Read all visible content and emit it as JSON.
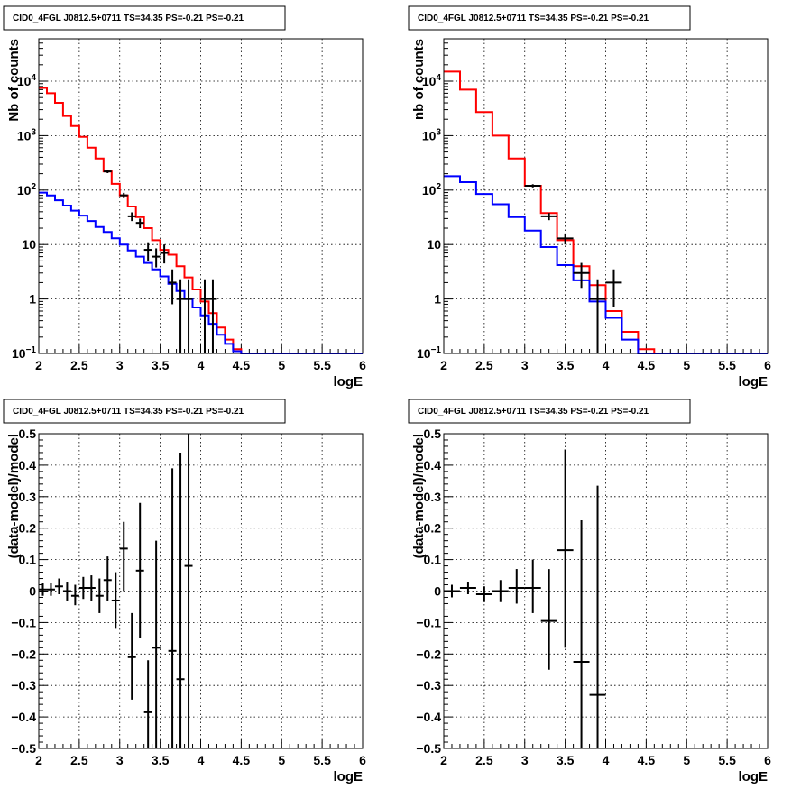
{
  "chart_data": [
    {
      "type": "line",
      "title": "CID0_4FGL J0812.5+0711 TS=34.35 PS=-0.21 PS=-0.21",
      "xlabel": "logE",
      "ylabel": "Nb of counts",
      "xlim": [
        2,
        6
      ],
      "ylim": [
        0.1,
        60000
      ],
      "yscale": "log",
      "grid": true,
      "x_ticks": [
        "2",
        "2.5",
        "3",
        "3.5",
        "4",
        "4.5",
        "5",
        "5.5",
        "6"
      ],
      "y_ticks": [
        {
          "value": 0.1,
          "label": "10^-1"
        },
        {
          "value": 1,
          "label": "1"
        },
        {
          "value": 10,
          "label": "10"
        },
        {
          "value": 100,
          "label": "10^2"
        },
        {
          "value": 1000,
          "label": "10^3"
        },
        {
          "value": 10000,
          "label": "10^4"
        }
      ],
      "series": [
        {
          "kind": "step",
          "color": "#ff0000",
          "bin_edges": [
            2.0,
            2.1,
            2.2,
            2.3,
            2.4,
            2.5,
            2.6,
            2.7,
            2.8,
            2.9,
            3.0,
            3.1,
            3.2,
            3.3,
            3.4,
            3.5,
            3.6,
            3.7,
            3.8,
            3.9,
            4.0,
            4.1,
            4.2,
            4.3,
            4.4,
            4.5,
            4.6,
            4.7,
            4.8,
            4.9,
            5.0,
            5.1,
            5.2,
            5.3,
            5.4,
            5.5,
            5.6,
            5.7,
            5.8,
            5.9,
            6.0
          ],
          "values": [
            7500,
            6000,
            4000,
            2300,
            1500,
            950,
            600,
            380,
            220,
            130,
            80,
            50,
            32,
            20,
            12,
            8,
            6.5,
            4,
            2.5,
            1.5,
            0.9,
            0.55,
            0.3,
            0.18,
            0.12,
            0.1,
            0.1,
            0.1,
            0.1,
            0.1,
            0.1,
            0.1,
            0.1,
            0.1,
            0.1,
            0.1,
            0.1,
            0.1,
            0.1,
            0.1
          ]
        },
        {
          "kind": "step",
          "color": "#0000ff",
          "bin_edges": [
            2.0,
            2.1,
            2.2,
            2.3,
            2.4,
            2.5,
            2.6,
            2.7,
            2.8,
            2.9,
            3.0,
            3.1,
            3.2,
            3.3,
            3.4,
            3.5,
            3.6,
            3.7,
            3.8,
            3.9,
            4.0,
            4.1,
            4.2,
            4.3,
            4.4,
            4.5,
            4.6,
            4.7,
            4.8,
            4.9,
            5.0,
            5.1,
            5.2,
            5.3,
            5.4,
            5.5,
            5.6,
            5.7,
            5.8,
            5.9,
            6.0
          ],
          "values": [
            90,
            80,
            65,
            52,
            42,
            34,
            27,
            21,
            17,
            13,
            10,
            7.8,
            6,
            4.6,
            3.5,
            2.6,
            1.9,
            1.4,
            1.0,
            0.7,
            0.5,
            0.35,
            0.22,
            0.15,
            0.11,
            0.1,
            0.1,
            0.1,
            0.1,
            0.1,
            0.1,
            0.1,
            0.1,
            0.1,
            0.1,
            0.1,
            0.1,
            0.1,
            0.1,
            0.1
          ]
        },
        {
          "kind": "points",
          "color": "#000000",
          "points": [
            {
              "x": 2.85,
              "y": 220,
              "xerr": 0.05,
              "ylo": 205,
              "yhi": 235
            },
            {
              "x": 3.05,
              "y": 80,
              "xerr": 0.05,
              "ylo": 71,
              "yhi": 89
            },
            {
              "x": 3.15,
              "y": 33,
              "xerr": 0.05,
              "ylo": 27,
              "yhi": 39
            },
            {
              "x": 3.25,
              "y": 25,
              "xerr": 0.05,
              "ylo": 20,
              "yhi": 30
            },
            {
              "x": 3.35,
              "y": 8,
              "xerr": 0.05,
              "ylo": 5,
              "yhi": 11
            },
            {
              "x": 3.45,
              "y": 6,
              "xerr": 0.05,
              "ylo": 3.8,
              "yhi": 8.5
            },
            {
              "x": 3.55,
              "y": 7,
              "xerr": 0.05,
              "ylo": 4.5,
              "yhi": 10
            },
            {
              "x": 3.65,
              "y": 2,
              "xerr": 0.05,
              "ylo": 0.8,
              "yhi": 3.5
            },
            {
              "x": 3.75,
              "y": 1,
              "xerr": 0.05,
              "ylo": 0.1,
              "yhi": 2.3
            },
            {
              "x": 3.85,
              "y": 1,
              "xerr": 0.05,
              "ylo": 0.1,
              "yhi": 2.3
            },
            {
              "x": 4.05,
              "y": 1,
              "xerr": 0.05,
              "ylo": 0.1,
              "yhi": 2.3
            },
            {
              "x": 4.15,
              "y": 1,
              "xerr": 0.05,
              "ylo": 0.1,
              "yhi": 2.3
            }
          ]
        }
      ]
    },
    {
      "type": "line",
      "title": "CID0_4FGL J0812.5+0711 TS=34.35 PS=-0.21 PS=-0.21",
      "xlabel": "logE",
      "ylabel": "nb of counts",
      "xlim": [
        2,
        6
      ],
      "ylim": [
        0.1,
        60000
      ],
      "yscale": "log",
      "grid": true,
      "x_ticks": [
        "2",
        "2.5",
        "3",
        "3.5",
        "4",
        "4.5",
        "5",
        "5.5",
        "6"
      ],
      "y_ticks": [
        {
          "value": 0.1,
          "label": "10^-1"
        },
        {
          "value": 1,
          "label": "1"
        },
        {
          "value": 10,
          "label": "10"
        },
        {
          "value": 100,
          "label": "10^2"
        },
        {
          "value": 1000,
          "label": "10^3"
        },
        {
          "value": 10000,
          "label": "10^4"
        }
      ],
      "series": [
        {
          "kind": "step",
          "color": "#ff0000",
          "bin_edges": [
            2.0,
            2.2,
            2.4,
            2.6,
            2.8,
            3.0,
            3.2,
            3.4,
            3.6,
            3.8,
            4.0,
            4.2,
            4.4,
            4.6,
            4.8,
            5.0,
            5.2,
            5.4,
            5.6,
            5.8,
            6.0
          ],
          "values": [
            15000,
            7000,
            2700,
            1000,
            380,
            120,
            38,
            12,
            4,
            1.8,
            0.6,
            0.25,
            0.12,
            0.1,
            0.1,
            0.1,
            0.1,
            0.1,
            0.1,
            0.1
          ]
        },
        {
          "kind": "step",
          "color": "#0000ff",
          "bin_edges": [
            2.0,
            2.2,
            2.4,
            2.6,
            2.8,
            3.0,
            3.2,
            3.4,
            3.6,
            3.8,
            4.0,
            4.2,
            4.4,
            4.6,
            4.8,
            5.0,
            5.2,
            5.4,
            5.6,
            5.8,
            6.0
          ],
          "values": [
            180,
            140,
            85,
            55,
            32,
            18,
            9,
            4.2,
            2.2,
            0.9,
            0.45,
            0.18,
            0.1,
            0.1,
            0.1,
            0.1,
            0.1,
            0.1,
            0.1,
            0.1
          ]
        },
        {
          "kind": "points",
          "color": "#000000",
          "points": [
            {
              "x": 3.1,
              "y": 120,
              "xerr": 0.1,
              "ylo": 112,
              "yhi": 128
            },
            {
              "x": 3.3,
              "y": 33,
              "xerr": 0.1,
              "ylo": 28,
              "yhi": 38
            },
            {
              "x": 3.5,
              "y": 13,
              "xerr": 0.1,
              "ylo": 10,
              "yhi": 16
            },
            {
              "x": 3.7,
              "y": 3,
              "xerr": 0.1,
              "ylo": 1.6,
              "yhi": 4.6
            },
            {
              "x": 3.9,
              "y": 1,
              "xerr": 0.1,
              "ylo": 0.1,
              "yhi": 2.3
            },
            {
              "x": 4.1,
              "y": 2,
              "xerr": 0.1,
              "ylo": 0.7,
              "yhi": 3.5
            }
          ]
        }
      ]
    },
    {
      "type": "scatter",
      "title": "CID0_4FGL J0812.5+0711 TS=34.35 PS=-0.21 PS=-0.21",
      "xlabel": "logE",
      "ylabel": "(data-model)/model",
      "xlim": [
        2,
        6
      ],
      "ylim": [
        -0.5,
        0.5
      ],
      "yscale": "linear",
      "grid": true,
      "x_ticks": [
        "2",
        "2.5",
        "3",
        "3.5",
        "4",
        "4.5",
        "5",
        "5.5",
        "6"
      ],
      "y_ticks": [
        {
          "value": -0.5,
          "label": "−0.5"
        },
        {
          "value": -0.4,
          "label": "−0.4"
        },
        {
          "value": -0.3,
          "label": "−0.3"
        },
        {
          "value": -0.2,
          "label": "−0.2"
        },
        {
          "value": -0.1,
          "label": "−0.1"
        },
        {
          "value": 0,
          "label": "0"
        },
        {
          "value": 0.1,
          "label": "0.1"
        },
        {
          "value": 0.2,
          "label": "0.2"
        },
        {
          "value": 0.3,
          "label": "0.3"
        },
        {
          "value": 0.4,
          "label": "0.4"
        },
        {
          "value": 0.5,
          "label": "0.5"
        }
      ],
      "series": [
        {
          "kind": "points",
          "color": "#000000",
          "points": [
            {
              "x": 2.05,
              "y": 0.005,
              "xerr": 0.05,
              "ylo": -0.015,
              "yhi": 0.025
            },
            {
              "x": 2.15,
              "y": 0.005,
              "xerr": 0.05,
              "ylo": -0.015,
              "yhi": 0.025
            },
            {
              "x": 2.25,
              "y": 0.015,
              "xerr": 0.05,
              "ylo": -0.01,
              "yhi": 0.04
            },
            {
              "x": 2.35,
              "y": 0.0,
              "xerr": 0.05,
              "ylo": -0.03,
              "yhi": 0.03
            },
            {
              "x": 2.45,
              "y": -0.015,
              "xerr": 0.05,
              "ylo": -0.045,
              "yhi": 0.02
            },
            {
              "x": 2.55,
              "y": 0.01,
              "xerr": 0.05,
              "ylo": -0.025,
              "yhi": 0.045
            },
            {
              "x": 2.65,
              "y": 0.01,
              "xerr": 0.05,
              "ylo": -0.03,
              "yhi": 0.05
            },
            {
              "x": 2.75,
              "y": -0.015,
              "xerr": 0.05,
              "ylo": -0.07,
              "yhi": 0.04
            },
            {
              "x": 2.85,
              "y": 0.035,
              "xerr": 0.05,
              "ylo": -0.03,
              "yhi": 0.11
            },
            {
              "x": 2.95,
              "y": -0.03,
              "xerr": 0.05,
              "ylo": -0.12,
              "yhi": 0.06
            },
            {
              "x": 3.05,
              "y": 0.135,
              "xerr": 0.05,
              "ylo": 0.0,
              "yhi": 0.22
            },
            {
              "x": 3.15,
              "y": -0.21,
              "xerr": 0.05,
              "ylo": -0.345,
              "yhi": -0.07
            },
            {
              "x": 3.25,
              "y": 0.065,
              "xerr": 0.05,
              "ylo": -0.15,
              "yhi": 0.28
            },
            {
              "x": 3.35,
              "y": -0.385,
              "xerr": 0.05,
              "ylo": -0.5,
              "yhi": -0.22
            },
            {
              "x": 3.45,
              "y": -0.18,
              "xerr": 0.05,
              "ylo": -0.5,
              "yhi": 0.16
            },
            {
              "x": 3.65,
              "y": -0.19,
              "xerr": 0.05,
              "ylo": -0.5,
              "yhi": 0.39
            },
            {
              "x": 3.75,
              "y": -0.28,
              "xerr": 0.05,
              "ylo": -0.5,
              "yhi": 0.44
            },
            {
              "x": 3.85,
              "y": 0.08,
              "xerr": 0.05,
              "ylo": -0.5,
              "yhi": 0.5
            }
          ]
        }
      ]
    },
    {
      "type": "scatter",
      "title": "CID0_4FGL J0812.5+0711 TS=34.35 PS=-0.21 PS=-0.21",
      "xlabel": "logE",
      "ylabel": "(data-model)/model",
      "xlim": [
        2,
        6
      ],
      "ylim": [
        -0.5,
        0.5
      ],
      "yscale": "linear",
      "grid": true,
      "x_ticks": [
        "2",
        "2.5",
        "3",
        "3.5",
        "4",
        "4.5",
        "5",
        "5.5",
        "6"
      ],
      "y_ticks": [
        {
          "value": -0.5,
          "label": "−0.5"
        },
        {
          "value": -0.4,
          "label": "−0.4"
        },
        {
          "value": -0.3,
          "label": "−0.3"
        },
        {
          "value": -0.2,
          "label": "−0.2"
        },
        {
          "value": -0.1,
          "label": "−0.1"
        },
        {
          "value": 0,
          "label": "0"
        },
        {
          "value": 0.1,
          "label": "0.1"
        },
        {
          "value": 0.2,
          "label": "0.2"
        },
        {
          "value": 0.3,
          "label": "0.3"
        },
        {
          "value": 0.4,
          "label": "0.4"
        },
        {
          "value": 0.5,
          "label": "0.5"
        }
      ],
      "series": [
        {
          "kind": "points",
          "color": "#000000",
          "points": [
            {
              "x": 2.1,
              "y": 0.0,
              "xerr": 0.1,
              "ylo": -0.02,
              "yhi": 0.02
            },
            {
              "x": 2.3,
              "y": 0.01,
              "xerr": 0.1,
              "ylo": -0.01,
              "yhi": 0.03
            },
            {
              "x": 2.5,
              "y": -0.01,
              "xerr": 0.1,
              "ylo": -0.035,
              "yhi": 0.015
            },
            {
              "x": 2.7,
              "y": 0.0,
              "xerr": 0.1,
              "ylo": -0.035,
              "yhi": 0.035
            },
            {
              "x": 2.9,
              "y": 0.01,
              "xerr": 0.1,
              "ylo": -0.04,
              "yhi": 0.07
            },
            {
              "x": 3.1,
              "y": 0.01,
              "xerr": 0.1,
              "ylo": -0.07,
              "yhi": 0.1
            },
            {
              "x": 3.3,
              "y": -0.095,
              "xerr": 0.1,
              "ylo": -0.25,
              "yhi": 0.07
            },
            {
              "x": 3.5,
              "y": 0.13,
              "xerr": 0.1,
              "ylo": -0.18,
              "yhi": 0.45
            },
            {
              "x": 3.7,
              "y": -0.225,
              "xerr": 0.1,
              "ylo": -0.5,
              "yhi": 0.225
            },
            {
              "x": 3.9,
              "y": -0.33,
              "xerr": 0.1,
              "ylo": -0.5,
              "yhi": 0.335
            }
          ]
        }
      ]
    }
  ]
}
